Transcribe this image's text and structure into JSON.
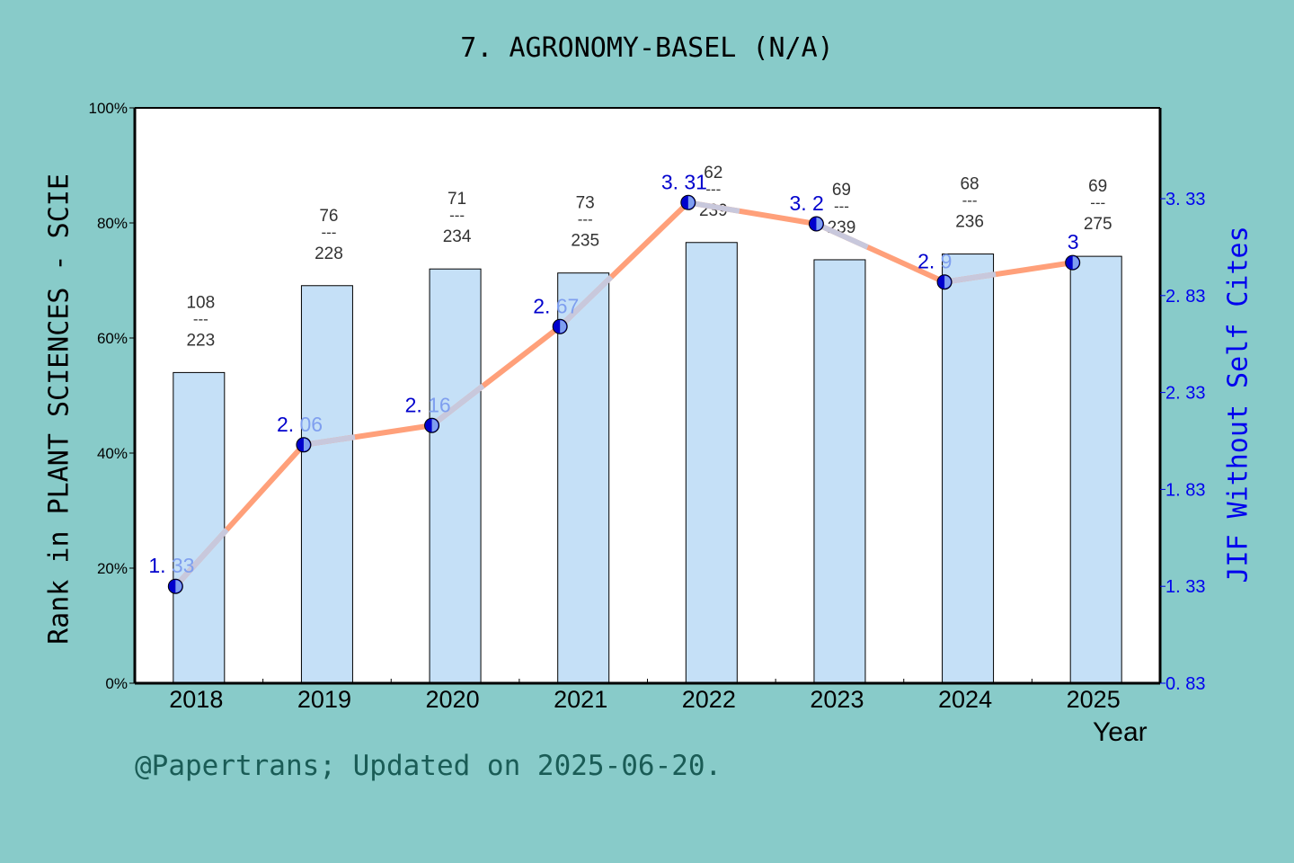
{
  "title": "7.  AGRONOMY-BASEL (N/A)",
  "footer": "@Papertrans; Updated on 2025-06-20.",
  "colors": {
    "background": "#88cbc9",
    "plot_bg": "#ffffff",
    "bar_fill": "#c5e0f7",
    "bar_stroke": "#000000",
    "line": "#ffa07a",
    "line_highlight": "#c8c8dc",
    "marker": "#0000cd",
    "marker_light": "#7f9fef",
    "jif_text": "#0000cd",
    "rank_text": "#333333",
    "right_axis": "#0000ee"
  },
  "chart_data": {
    "type": "bar+line",
    "title": "7.  AGRONOMY-BASEL (N/A)",
    "xlabel": "Year",
    "ylabel": "Rank in PLANT SCIENCES - SCIE",
    "ylabel_right": "JIF Without Self Cites",
    "categories": [
      "2018",
      "2019",
      "2020",
      "2021",
      "2022",
      "2023",
      "2024",
      "2025"
    ],
    "ylim": [
      0,
      100
    ],
    "y_ticks": [
      "0%",
      "20%",
      "40%",
      "60%",
      "80%",
      "100%"
    ],
    "y_tick_values": [
      0,
      20,
      40,
      60,
      80,
      100
    ],
    "ylim_right": [
      0.83,
      3.33
    ],
    "y_right_ticks": [
      "0.83",
      "1.33",
      "1.83",
      "2.33",
      "2.83",
      "3.33"
    ],
    "y_right_tick_values": [
      0.83,
      1.33,
      1.83,
      2.33,
      2.83,
      3.33
    ],
    "grid": false,
    "series": [
      {
        "name": "Rank percentile",
        "type": "bar",
        "values": [
          54.0,
          69.1,
          72.0,
          71.3,
          76.6,
          73.6,
          74.6,
          74.2
        ],
        "labels": [
          {
            "rank": "108",
            "total": "223"
          },
          {
            "rank": "76",
            "total": "228"
          },
          {
            "rank": "71",
            "total": "234"
          },
          {
            "rank": "73",
            "total": "235"
          },
          {
            "rank": "62",
            "total": "239"
          },
          {
            "rank": "69",
            "total": "239"
          },
          {
            "rank": "68",
            "total": "236"
          },
          {
            "rank": "69",
            "total": "275"
          }
        ]
      },
      {
        "name": "JIF Without Self Cites",
        "type": "line",
        "axis": "right",
        "values": [
          1.33,
          2.06,
          2.16,
          2.67,
          3.31,
          3.2,
          2.9,
          3.0
        ],
        "labels": [
          "1.33",
          "2.06",
          "2.16",
          "2.67",
          "3.31",
          "3.2",
          "2.9",
          "3"
        ]
      }
    ]
  }
}
